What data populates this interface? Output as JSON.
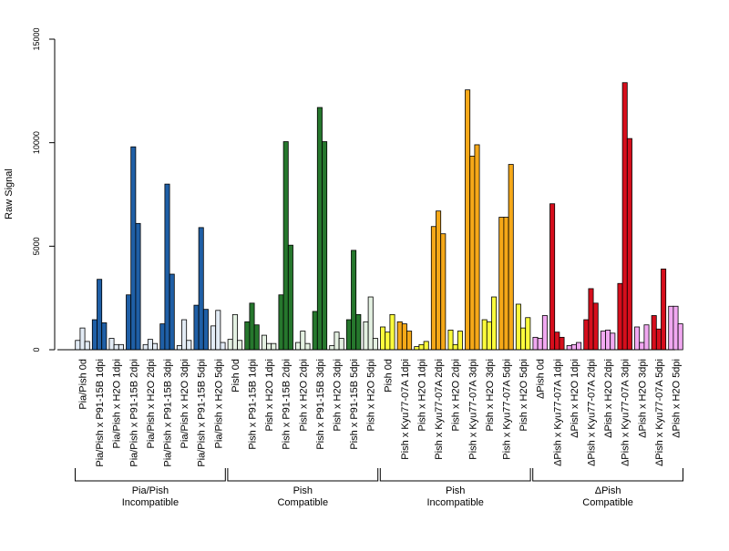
{
  "chart_data": {
    "type": "bar",
    "ylabel": "Raw Signal",
    "xlabel": "",
    "ylim": [
      0,
      15000
    ],
    "y_ticks": [
      0,
      5000,
      10000,
      15000
    ],
    "grid": false,
    "bars_per_category": 3,
    "categories": [
      "Pia/Pish 0d",
      "Pia/Pish x P91-15B 1dpi",
      "Pia/Pish x H2O 1dpi",
      "Pia/Pish x P91-15B 2dpi",
      "Pia/Pish x H2O 2dpi",
      "Pia/Pish x P91-15B 3dpi",
      "Pia/Pish x H2O 3dpi",
      "Pia/Pish x P91-15B 5dpi",
      "Pia/Pish x H2O 5dpi",
      "Pish 0d",
      "Pish x P91-15B 1dpi",
      "Pish x H2O 1dpi",
      "Pish x P91-15B 2dpi",
      "Pish x H2O 2dpi",
      "Pish x P91-15B 3dpi",
      "Pish x H2O 3dpi",
      "Pish x P91-15B 5dpi",
      "Pish x H2O 5dpi",
      "Pish 0d",
      "Pish x Kyu77-07A 1dpi",
      "Pish x H2O 1dpi",
      "Pish x Kyu77-07A 2dpi",
      "Pish x H2O 2dpi",
      "Pish x Kyu77-07A 3dpi",
      "Pish x H2O 3dpi",
      "Pish x Kyu77-07A 5dpi",
      "Pish x H2O 5dpi",
      "ΔPish 0d",
      "ΔPish x Kyu77-07A 1dpi",
      "ΔPish x H2O 1dpi",
      "ΔPish x Kyu77-07A 2dpi",
      "ΔPish x H2O 2dpi",
      "ΔPish x Kyu77-07A 3dpi",
      "ΔPish x H2O 3dpi",
      "ΔPish x Kyu77-07A 5dpi",
      "ΔPish x H2O 5dpi"
    ],
    "values": [
      [
        450,
        1050,
        400
      ],
      [
        1450,
        3400,
        1300
      ],
      [
        550,
        250,
        250
      ],
      [
        2650,
        9800,
        6100
      ],
      [
        250,
        500,
        300
      ],
      [
        1250,
        8000,
        3650
      ],
      [
        200,
        1450,
        450
      ],
      [
        2150,
        5900,
        1950
      ],
      [
        1150,
        1900,
        350
      ],
      [
        500,
        1700,
        450
      ],
      [
        1350,
        2250,
        1200
      ],
      [
        700,
        300,
        300
      ],
      [
        2650,
        10050,
        5050
      ],
      [
        350,
        900,
        300
      ],
      [
        1850,
        11700,
        10050
      ],
      [
        200,
        850,
        550
      ],
      [
        1450,
        4800,
        1700
      ],
      [
        1350,
        2550,
        550
      ],
      [
        1100,
        850,
        1700
      ],
      [
        1350,
        1250,
        900
      ],
      [
        150,
        250,
        400
      ],
      [
        5950,
        6700,
        5600
      ],
      [
        950,
        250,
        900
      ],
      [
        12550,
        9350,
        9900
      ],
      [
        1450,
        1350,
        2550
      ],
      [
        6400,
        6400,
        8950
      ],
      [
        2200,
        1050,
        1550
      ],
      [
        600,
        550,
        1650
      ],
      [
        7050,
        850,
        600
      ],
      [
        200,
        250,
        350
      ],
      [
        1450,
        2950,
        2250
      ],
      [
        900,
        950,
        800
      ],
      [
        3200,
        12900,
        10200
      ],
      [
        1100,
        350,
        1200
      ],
      [
        1650,
        1000,
        3900
      ],
      [
        2100,
        2100,
        1250
      ]
    ],
    "fill_colors_per_category": [
      "#e2ebf5",
      "#1f5fa6",
      "#e2ebf5",
      "#1f5fa6",
      "#e2ebf5",
      "#1f5fa6",
      "#e2ebf5",
      "#1f5fa6",
      "#e2ebf5",
      "#e4f1e2",
      "#26772d",
      "#e4f1e2",
      "#26772d",
      "#e4f1e2",
      "#26772d",
      "#e4f1e2",
      "#26772d",
      "#e4f1e2",
      "#fbfb3c",
      "#f5a818",
      "#fbfb3c",
      "#f5a818",
      "#fbfb3c",
      "#f5a818",
      "#fbfb3c",
      "#f5a818",
      "#fbfb3c",
      "#f1a8f1",
      "#d60e1c",
      "#f1a8f1",
      "#d60e1c",
      "#f1a8f1",
      "#d60e1c",
      "#f1a8f1",
      "#d60e1c",
      "#f1a8f1"
    ],
    "groups": [
      {
        "line1": "Pia/Pish",
        "line2": "Incompatible",
        "start": 0,
        "end": 8
      },
      {
        "line1": "Pish",
        "line2": "Compatible",
        "start": 9,
        "end": 17
      },
      {
        "line1": "Pish",
        "line2": "Incompatible",
        "start": 18,
        "end": 26
      },
      {
        "line1": "ΔPish",
        "line2": "Compatible",
        "start": 27,
        "end": 35
      }
    ]
  }
}
